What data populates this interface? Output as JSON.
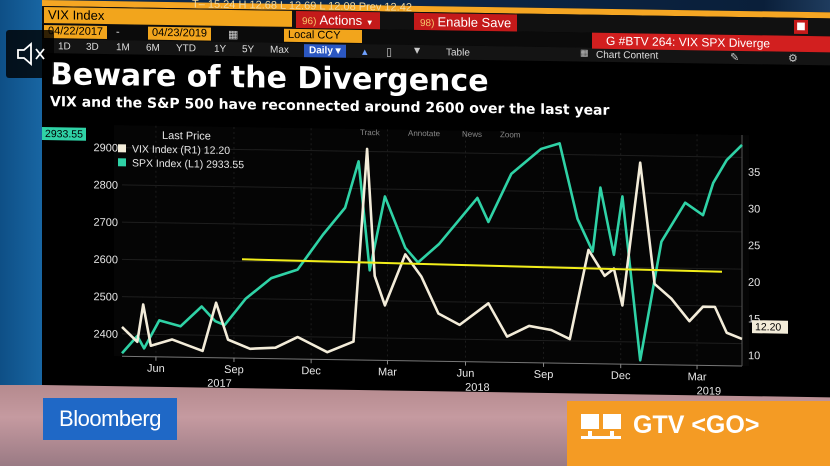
{
  "toolbar": {
    "top_partial": "T– 15.24    H  12.68    L  12.69    L  12.08    Prev  12.42",
    "security": "VIX Index",
    "actions_num": "96)",
    "actions_label": "Actions",
    "save_num": "98)",
    "save_label": "Enable Save",
    "start_date": "04/22/2017",
    "end_date": "04/23/2019",
    "currency": "Local CCY",
    "page_ref": "G #BTV 264: VIX SPX Diverge",
    "periods": [
      "1D",
      "3D",
      "1M",
      "6M",
      "YTD",
      "1Y",
      "5Y",
      "Max"
    ],
    "frequency": "Daily",
    "table_label": "Table",
    "chart_content_label": "Chart Content"
  },
  "chart": {
    "headline": "Beware of the Divergence",
    "subheadline": "VIX and the S&P 500 have reconnected around 2600 over the last year",
    "legend_title": "Last Price",
    "legend_items": [
      {
        "label": "VIX Index  (R1) 12.20",
        "color": "#f3ecd9"
      },
      {
        "label": "SPX Index  (L1) 2933.55",
        "color": "#2fd2a6"
      }
    ],
    "tools": [
      "Track",
      "Annotate",
      "News",
      "Zoom"
    ],
    "spx_last_label": "2933.55",
    "vix_last_label": "12.20"
  },
  "chart_data": {
    "type": "line",
    "title": "Beware of the Divergence",
    "subtitle": "VIX and the S&P 500 have reconnected around 2600 over the last year",
    "x_ticks": [
      {
        "date": "2017-06-01",
        "label": "Jun"
      },
      {
        "date": "2017-09-01",
        "label": "Sep"
      },
      {
        "date": "2017-12-01",
        "label": "Dec"
      },
      {
        "date": "2018-03-01",
        "label": "Mar"
      },
      {
        "date": "2018-06-01",
        "label": "Jun"
      },
      {
        "date": "2018-09-01",
        "label": "Sep"
      },
      {
        "date": "2018-12-01",
        "label": "Dec"
      },
      {
        "date": "2019-03-01",
        "label": "Mar"
      }
    ],
    "year_labels": [
      {
        "date": "2017-08-15",
        "label": "2017"
      },
      {
        "date": "2018-06-15",
        "label": "2018"
      },
      {
        "date": "2019-03-15",
        "label": "2019"
      }
    ],
    "xlim": [
      "2017-04-22",
      "2019-04-23"
    ],
    "left_axis": {
      "ticks": [
        2400,
        2500,
        2600,
        2700,
        2800,
        2900
      ],
      "ylim": [
        2340,
        2960
      ]
    },
    "right_axis": {
      "ticks": [
        10,
        15,
        20,
        25,
        30,
        35
      ],
      "ylim": [
        8.5,
        40
      ]
    },
    "reference_line": {
      "axis": "left",
      "value": 2600,
      "color": "#f2ee1a"
    },
    "series": [
      {
        "name": "SPX Index",
        "axis": "left",
        "color": "#2fd2a6",
        "last": 2933.55,
        "points": [
          [
            "2017-04-22",
            2348
          ],
          [
            "2017-05-10",
            2395
          ],
          [
            "2017-05-18",
            2362
          ],
          [
            "2017-06-05",
            2438
          ],
          [
            "2017-06-30",
            2423
          ],
          [
            "2017-07-25",
            2477
          ],
          [
            "2017-08-10",
            2438
          ],
          [
            "2017-08-21",
            2428
          ],
          [
            "2017-09-15",
            2500
          ],
          [
            "2017-10-15",
            2556
          ],
          [
            "2017-11-15",
            2580
          ],
          [
            "2017-12-15",
            2675
          ],
          [
            "2018-01-10",
            2748
          ],
          [
            "2018-01-26",
            2873
          ],
          [
            "2018-02-08",
            2581
          ],
          [
            "2018-02-26",
            2780
          ],
          [
            "2018-03-22",
            2643
          ],
          [
            "2018-04-06",
            2604
          ],
          [
            "2018-05-01",
            2655
          ],
          [
            "2018-06-15",
            2780
          ],
          [
            "2018-06-28",
            2716
          ],
          [
            "2018-07-25",
            2846
          ],
          [
            "2018-08-29",
            2914
          ],
          [
            "2018-09-20",
            2930
          ],
          [
            "2018-10-11",
            2728
          ],
          [
            "2018-10-29",
            2641
          ],
          [
            "2018-11-07",
            2813
          ],
          [
            "2018-11-23",
            2633
          ],
          [
            "2018-12-03",
            2790
          ],
          [
            "2018-12-24",
            2351
          ],
          [
            "2019-01-18",
            2670
          ],
          [
            "2019-02-15",
            2776
          ],
          [
            "2019-03-08",
            2743
          ],
          [
            "2019-03-20",
            2830
          ],
          [
            "2019-04-05",
            2892
          ],
          [
            "2019-04-23",
            2933.55
          ]
        ]
      },
      {
        "name": "VIX Index",
        "axis": "right",
        "color": "#f3ecd9",
        "last": 12.2,
        "points": [
          [
            "2017-04-22",
            12.5
          ],
          [
            "2017-05-10",
            10.5
          ],
          [
            "2017-05-17",
            15.6
          ],
          [
            "2017-05-26",
            10.0
          ],
          [
            "2017-06-20",
            10.9
          ],
          [
            "2017-07-26",
            9.4
          ],
          [
            "2017-08-11",
            16.0
          ],
          [
            "2017-08-25",
            11.0
          ],
          [
            "2017-09-20",
            9.8
          ],
          [
            "2017-10-20",
            10.0
          ],
          [
            "2017-11-15",
            11.5
          ],
          [
            "2017-12-20",
            9.5
          ],
          [
            "2018-01-20",
            11.0
          ],
          [
            "2018-02-05",
            37.3
          ],
          [
            "2018-02-14",
            20.0
          ],
          [
            "2018-02-26",
            16.0
          ],
          [
            "2018-03-22",
            23.0
          ],
          [
            "2018-04-10",
            20.0
          ],
          [
            "2018-04-30",
            15.0
          ],
          [
            "2018-05-25",
            13.5
          ],
          [
            "2018-06-28",
            16.5
          ],
          [
            "2018-07-20",
            12.0
          ],
          [
            "2018-08-15",
            13.5
          ],
          [
            "2018-09-10",
            13.0
          ],
          [
            "2018-10-02",
            11.8
          ],
          [
            "2018-10-24",
            24.0
          ],
          [
            "2018-11-12",
            20.5
          ],
          [
            "2018-11-23",
            21.5
          ],
          [
            "2018-12-03",
            16.5
          ],
          [
            "2018-12-24",
            36.0
          ],
          [
            "2019-01-10",
            19.5
          ],
          [
            "2019-01-30",
            17.5
          ],
          [
            "2019-02-20",
            14.5
          ],
          [
            "2019-03-08",
            16.5
          ],
          [
            "2019-03-22",
            16.5
          ],
          [
            "2019-04-05",
            13.0
          ],
          [
            "2019-04-23",
            12.2
          ]
        ]
      }
    ]
  },
  "overlay": {
    "brand": "Bloomberg",
    "cta": "GTV <GO>"
  }
}
